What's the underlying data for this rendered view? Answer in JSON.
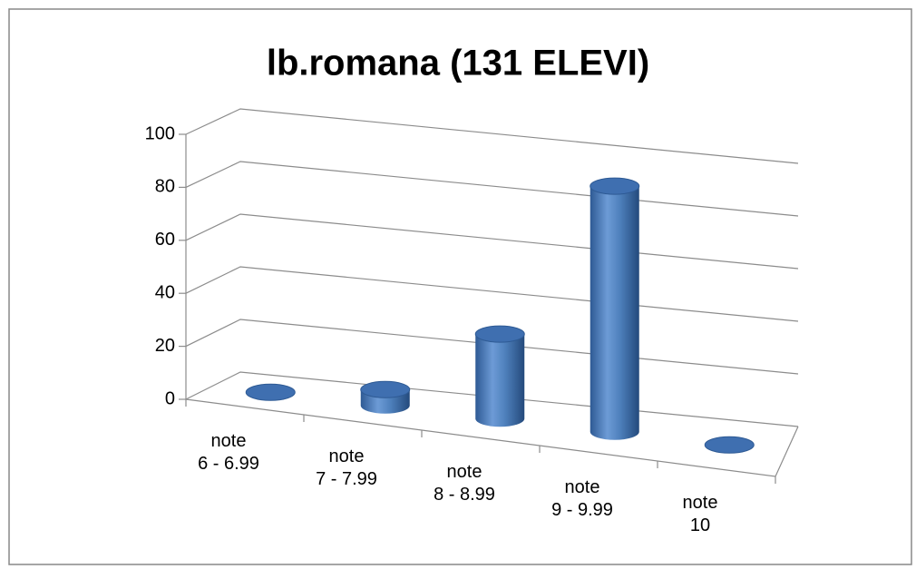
{
  "chart_data": {
    "type": "bar3d",
    "title": "lb.romana (131 ELEVI)",
    "categories": [
      [
        "note",
        "6 - 6.99"
      ],
      [
        "note",
        "7 - 7.99"
      ],
      [
        "note",
        "8 - 8.99"
      ],
      [
        "note",
        "9 - 9.99"
      ],
      [
        "note",
        "10"
      ]
    ],
    "values": [
      0,
      6,
      32,
      93,
      0
    ],
    "color": "#4f81bd",
    "ylim": [
      0,
      100
    ],
    "yticks": [
      0,
      20,
      40,
      60,
      80,
      100
    ],
    "grid": true
  }
}
